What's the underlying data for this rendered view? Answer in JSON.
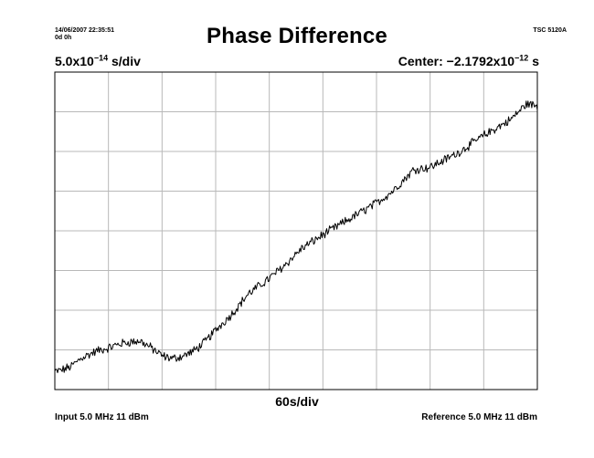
{
  "header": {
    "timestamp": "14/06/2007 22:35:51",
    "elapsed": "0d 0h",
    "model": "TSC 5120A"
  },
  "chart_data": {
    "type": "line",
    "title": "Phase Difference",
    "y_scale": {
      "mantissa": "5.0x10",
      "exponent": "−14",
      "unit": " s/div"
    },
    "center": {
      "label": "Center: ",
      "mantissa": "−2.1792x10",
      "exponent": "−12",
      "unit": " s"
    },
    "x_scale": "60s/div",
    "divisions": {
      "x": 9,
      "y": 8
    },
    "ylim_div": [
      0,
      8
    ],
    "xlim_div": [
      0,
      9
    ],
    "grid": true,
    "series": [
      {
        "stroke": "#000000",
        "anchors_div": [
          [
            0.0,
            0.45
          ],
          [
            0.15,
            0.5
          ],
          [
            0.3,
            0.58
          ],
          [
            0.5,
            0.8
          ],
          [
            0.8,
            0.98
          ],
          [
            1.0,
            1.05
          ],
          [
            1.2,
            1.15
          ],
          [
            1.4,
            1.2
          ],
          [
            1.6,
            1.22
          ],
          [
            1.8,
            1.05
          ],
          [
            2.0,
            0.85
          ],
          [
            2.2,
            0.78
          ],
          [
            2.4,
            0.85
          ],
          [
            2.6,
            0.98
          ],
          [
            2.8,
            1.2
          ],
          [
            3.0,
            1.5
          ],
          [
            3.3,
            1.9
          ],
          [
            3.6,
            2.4
          ],
          [
            4.0,
            2.8
          ],
          [
            4.3,
            3.15
          ],
          [
            4.6,
            3.55
          ],
          [
            5.0,
            3.9
          ],
          [
            5.5,
            4.3
          ],
          [
            6.0,
            4.7
          ],
          [
            6.3,
            5.0
          ],
          [
            6.7,
            5.55
          ],
          [
            7.0,
            5.6
          ],
          [
            7.5,
            5.95
          ],
          [
            8.0,
            6.4
          ],
          [
            8.5,
            6.8
          ],
          [
            8.8,
            7.2
          ],
          [
            9.0,
            7.15
          ]
        ],
        "noise_div": 0.1
      }
    ]
  },
  "footer": {
    "input": "Input 5.0 MHz 11 dBm",
    "reference": "Reference 5.0 MHz 11 dBm"
  }
}
